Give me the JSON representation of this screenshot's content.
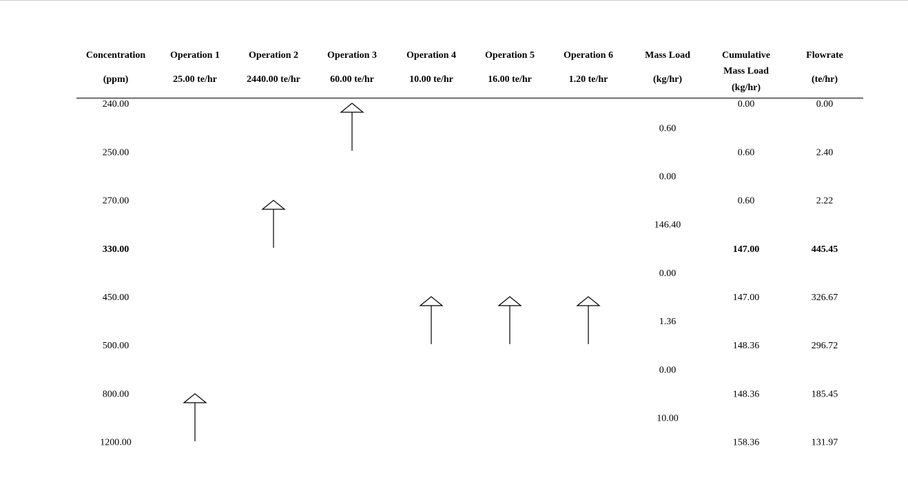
{
  "header": {
    "columns": [
      {
        "lines": [
          "Concentration",
          "(ppm)"
        ]
      },
      {
        "lines": [
          "Operation 1",
          "25.00 te/hr"
        ]
      },
      {
        "lines": [
          "Operation 2",
          "2440.00 te/hr"
        ]
      },
      {
        "lines": [
          "Operation 3",
          "60.00 te/hr"
        ]
      },
      {
        "lines": [
          "Operation 4",
          "10.00 te/hr"
        ]
      },
      {
        "lines": [
          "Operation 5",
          "16.00 te/hr"
        ]
      },
      {
        "lines": [
          "Operation 6",
          "1.20 te/hr"
        ]
      },
      {
        "lines": [
          "Mass Load",
          "(kg/hr)"
        ]
      },
      {
        "lines": [
          "Cumulative",
          "Mass Load",
          "(kg/hr)"
        ]
      },
      {
        "lines": [
          "Flowrate",
          "(te/hr)"
        ]
      }
    ]
  },
  "table": {
    "rows": [
      {
        "concentration": "240.00",
        "cumulative": "0.00",
        "flowrate": "0.00"
      },
      {
        "concentration": "250.00",
        "cumulative": "0.60",
        "flowrate": "2.40"
      },
      {
        "concentration": "270.00",
        "cumulative": "0.60",
        "flowrate": "2.22"
      },
      {
        "concentration": "330.00",
        "cumulative": "147.00",
        "flowrate": "445.45",
        "emphasis": true
      },
      {
        "concentration": "450.00",
        "cumulative": "147.00",
        "flowrate": "326.67"
      },
      {
        "concentration": "500.00",
        "cumulative": "148.36",
        "flowrate": "296.72"
      },
      {
        "concentration": "800.00",
        "cumulative": "148.36",
        "flowrate": "185.45"
      },
      {
        "concentration": "1200.00",
        "cumulative": "158.36",
        "flowrate": "131.97"
      }
    ],
    "mass_loads": [
      "0.60",
      "0.00",
      "146.40",
      "0.00",
      "1.36",
      "0.00",
      "10.00"
    ]
  }
}
